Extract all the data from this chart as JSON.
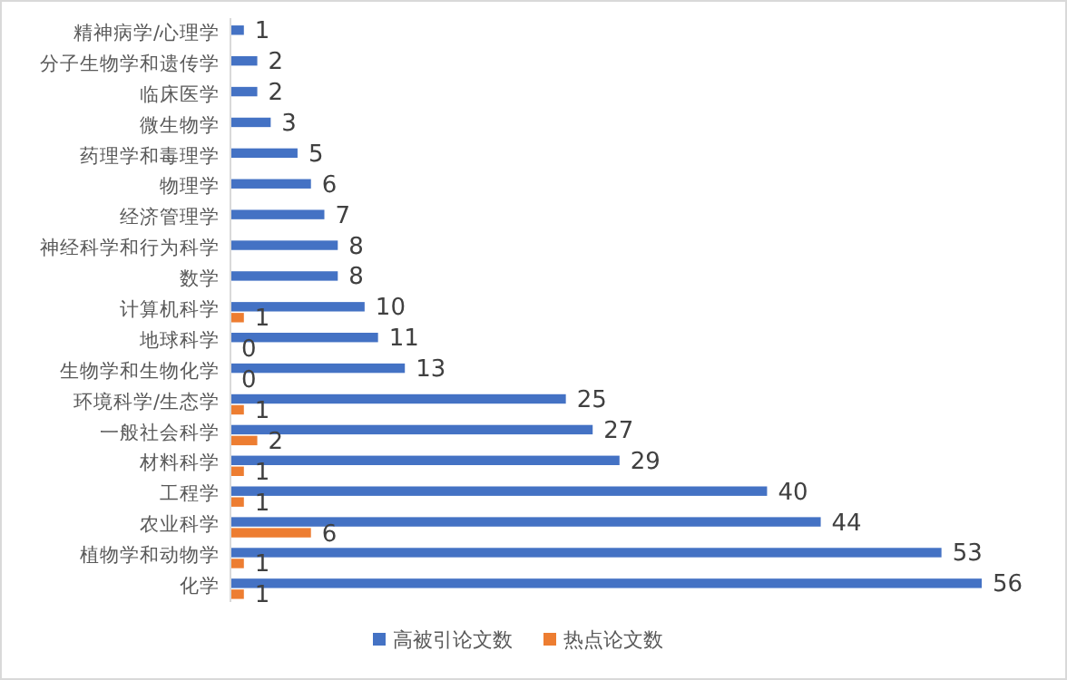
{
  "chart_data": {
    "type": "bar",
    "orientation": "horizontal",
    "data_labels": true,
    "legend": "bottom",
    "categories": [
      "精神病学/心理学",
      "分子生物学和遗传学",
      "临床医学",
      "微生物学",
      "药理学和毒理学",
      "物理学",
      "经济管理学",
      "神经科学和行为科学",
      "数学",
      "计算机科学",
      "地球科学",
      "生物学和生物化学",
      "环境科学/生态学",
      "一般社会科学",
      "材料科学",
      "工程学",
      "农业科学",
      "植物学和动物学",
      "化学"
    ],
    "series": [
      {
        "name": "高被引论文数",
        "color": "#4472c4",
        "values": [
          1,
          2,
          2,
          3,
          5,
          6,
          7,
          8,
          8,
          10,
          11,
          13,
          25,
          27,
          29,
          40,
          44,
          53,
          56
        ]
      },
      {
        "name": "热点论文数",
        "color": "#ed7d31",
        "values": [
          null,
          null,
          null,
          null,
          null,
          null,
          null,
          null,
          null,
          1,
          0,
          0,
          1,
          2,
          1,
          1,
          6,
          1,
          1
        ]
      }
    ]
  }
}
